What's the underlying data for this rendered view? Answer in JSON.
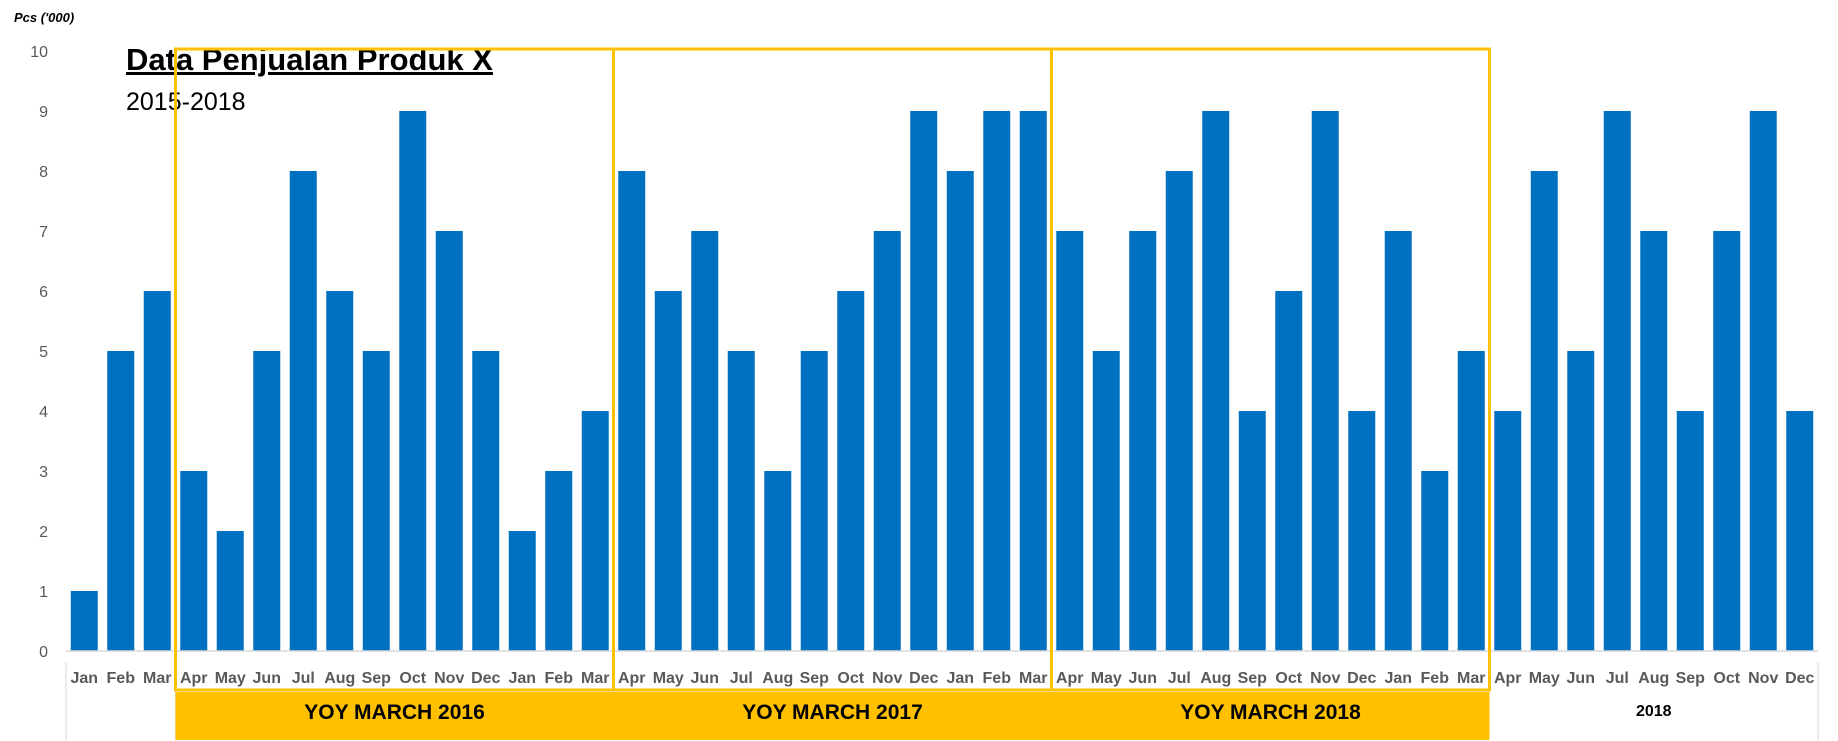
{
  "colors": {
    "bar": "#0070C0",
    "highlight": "#FFC000",
    "axis_line": "#D9D9D9",
    "tick_text": "#595959",
    "label_text": "#000000"
  },
  "chart_data": {
    "type": "bar",
    "title": "Data Penjualan Produk X",
    "subtitle": "2015-2018",
    "ylabel": "Pcs ('000)",
    "xlabel": "",
    "ylim": [
      0,
      10
    ],
    "yticks": [
      0,
      1,
      2,
      3,
      4,
      5,
      6,
      7,
      8,
      9,
      10
    ],
    "grid": false,
    "categories": [
      "Jan",
      "Feb",
      "Mar",
      "Apr",
      "May",
      "Jun",
      "Jul",
      "Aug",
      "Sep",
      "Oct",
      "Nov",
      "Dec",
      "Jan",
      "Feb",
      "Mar",
      "Apr",
      "May",
      "Jun",
      "Jul",
      "Aug",
      "Sep",
      "Oct",
      "Nov",
      "Dec",
      "Jan",
      "Feb",
      "Mar",
      "Apr",
      "May",
      "Jun",
      "Jul",
      "Aug",
      "Sep",
      "Oct",
      "Nov",
      "Dec",
      "Jan",
      "Feb",
      "Mar",
      "Apr",
      "May",
      "Jun",
      "Jul",
      "Aug",
      "Sep",
      "Oct",
      "Nov",
      "Dec"
    ],
    "values": [
      1,
      5,
      6,
      3,
      2,
      5,
      8,
      6,
      5,
      9,
      7,
      5,
      2,
      3,
      4,
      8,
      6,
      7,
      5,
      3,
      5,
      6,
      7,
      9,
      8,
      9,
      9,
      7,
      5,
      7,
      8,
      9,
      4,
      6,
      9,
      4,
      7,
      3,
      5,
      4,
      8,
      5,
      9,
      7,
      4,
      7,
      9,
      4
    ],
    "groups": [
      {
        "label": "",
        "start": 0,
        "end": 2,
        "highlight": false
      },
      {
        "label": "YOY MARCH 2016",
        "start": 3,
        "end": 14,
        "highlight": true
      },
      {
        "label": "YOY MARCH 2017",
        "start": 15,
        "end": 26,
        "highlight": true
      },
      {
        "label": "YOY MARCH 2018",
        "start": 27,
        "end": 38,
        "highlight": true
      },
      {
        "label": "2018",
        "start": 39,
        "end": 47,
        "highlight": false
      }
    ]
  }
}
